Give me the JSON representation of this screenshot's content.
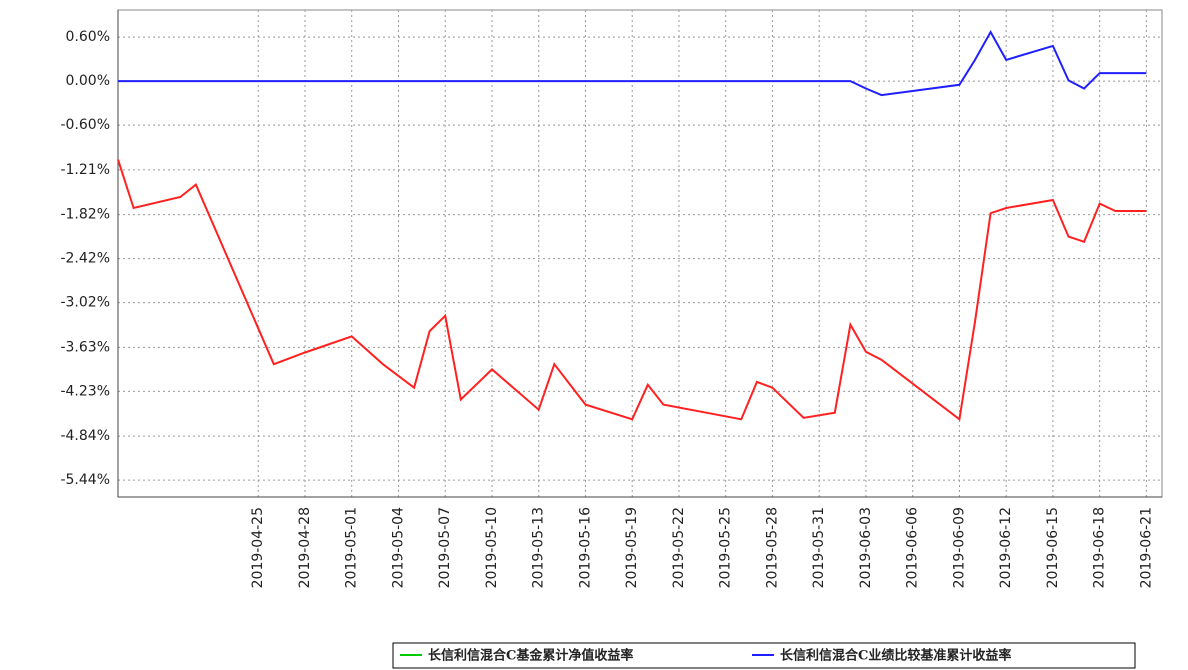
{
  "chart_data": {
    "type": "line",
    "x": [
      "2019-04-16",
      "2019-04-17",
      "2019-04-20",
      "2019-04-21",
      "2019-04-26",
      "2019-04-28",
      "2019-05-01",
      "2019-05-03",
      "2019-05-05",
      "2019-05-06",
      "2019-05-07",
      "2019-05-08",
      "2019-05-10",
      "2019-05-13",
      "2019-05-14",
      "2019-05-16",
      "2019-05-19",
      "2019-05-20",
      "2019-05-21",
      "2019-05-26",
      "2019-05-27",
      "2019-05-28",
      "2019-05-30",
      "2019-06-01",
      "2019-06-02",
      "2019-06-03",
      "2019-06-04",
      "2019-06-09",
      "2019-06-10",
      "2019-06-11",
      "2019-06-12",
      "2019-06-15",
      "2019-06-16",
      "2019-06-17",
      "2019-06-18",
      "2019-06-19",
      "2019-06-21"
    ],
    "series": [
      {
        "name": "长信利信混合C基金累计净值收益率",
        "color": "#ff2020",
        "legend_color": "#00cc00",
        "values": [
          -1.07,
          -1.73,
          -1.58,
          -1.41,
          -3.86,
          -3.7,
          -3.48,
          -3.86,
          -4.18,
          -3.41,
          -3.2,
          -4.34,
          -3.93,
          -4.48,
          -3.86,
          -4.41,
          -4.61,
          -4.14,
          -4.41,
          -4.61,
          -4.1,
          -4.18,
          -4.59,
          -4.52,
          -3.32,
          -3.69,
          -3.8,
          -4.61,
          -3.28,
          -1.8,
          -1.73,
          -1.62,
          -2.12,
          -2.19,
          -1.67,
          -1.77,
          -1.77
        ]
      },
      {
        "name": "长信利信混合C业绩比较基准累计收益率",
        "color": "#2020ff",
        "legend_color": "#2020ff",
        "values": [
          0,
          0,
          0,
          0,
          0,
          0,
          0,
          0,
          0,
          0,
          0,
          0,
          0,
          0,
          0,
          0,
          0,
          0,
          0,
          0,
          0,
          0,
          0,
          0,
          0,
          -0.1,
          -0.19,
          -0.05,
          0.29,
          0.67,
          0.29,
          0.48,
          0.01,
          -0.1,
          0.11,
          0.11,
          0.11
        ]
      }
    ],
    "xlim": [
      "2019-04-16",
      "2019-06-22"
    ],
    "xticks": [
      "2019-04-25",
      "2019-04-28",
      "2019-05-01",
      "2019-05-04",
      "2019-05-07",
      "2019-05-10",
      "2019-05-13",
      "2019-05-16",
      "2019-05-19",
      "2019-05-22",
      "2019-05-25",
      "2019-05-28",
      "2019-05-31",
      "2019-06-03",
      "2019-06-06",
      "2019-06-09",
      "2019-06-12",
      "2019-06-15",
      "2019-06-18",
      "2019-06-21"
    ],
    "ylim": [
      -5.67,
      0.97
    ],
    "yticks": [
      {
        "value": 0.6,
        "label": "0.60%"
      },
      {
        "value": 0,
        "label": "0.00%"
      },
      {
        "value": -0.6,
        "label": "-0.60%"
      },
      {
        "value": -1.21,
        "label": "-1.21%"
      },
      {
        "value": -1.82,
        "label": "-1.82%"
      },
      {
        "value": -2.42,
        "label": "-2.42%"
      },
      {
        "value": -3.02,
        "label": "-3.02%"
      },
      {
        "value": -3.63,
        "label": "-3.63%"
      },
      {
        "value": -4.23,
        "label": "-4.23%"
      },
      {
        "value": -4.84,
        "label": "-4.84%"
      },
      {
        "value": -5.44,
        "label": "-5.44%"
      }
    ],
    "grid": true
  }
}
